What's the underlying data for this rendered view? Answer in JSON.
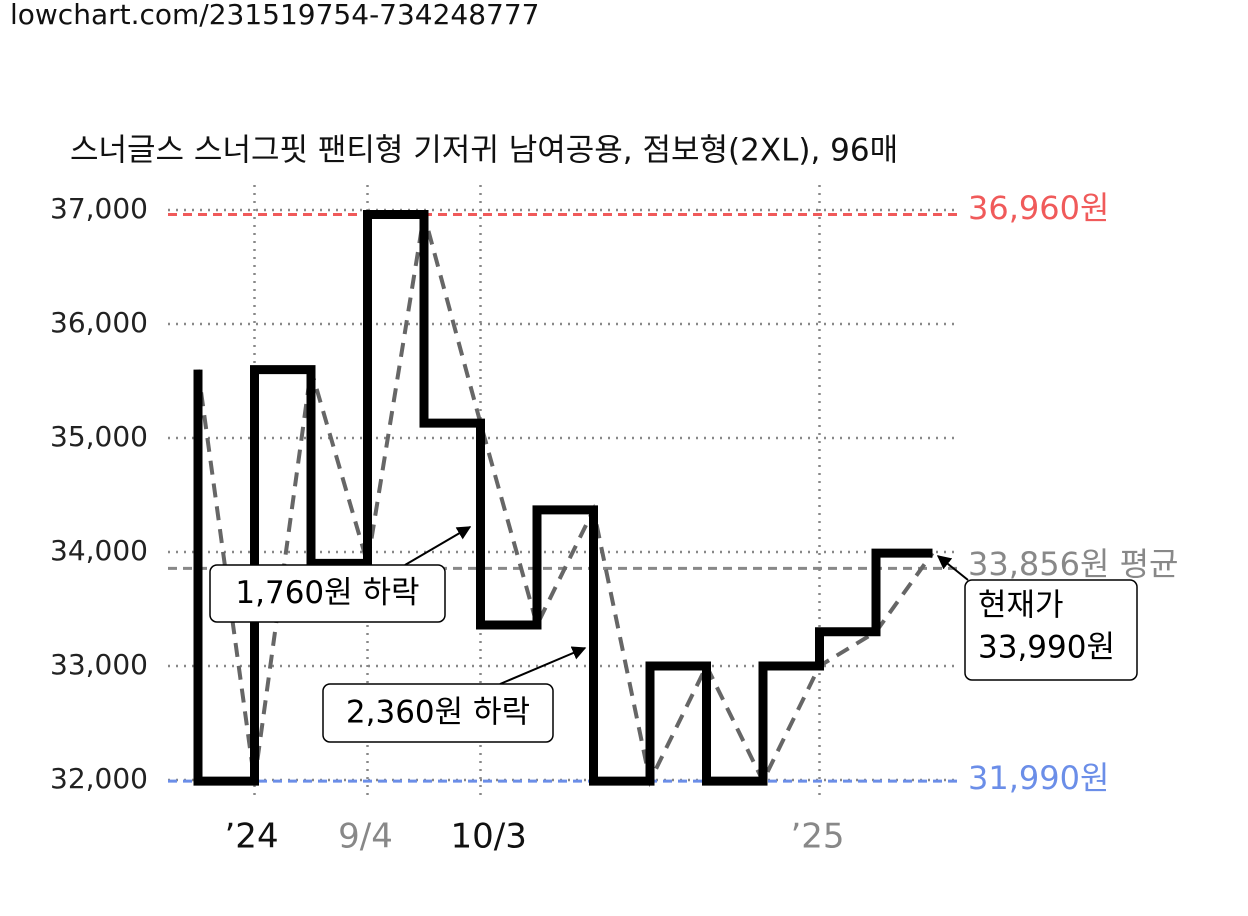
{
  "header": "lowchart.com/231519754-734248777",
  "chart_data": {
    "type": "step-line",
    "title": "스너글스 스너그핏 팬티형 기저귀 남여공용, 점보형(2XL), 96매",
    "x": [
      0,
      1,
      2,
      3,
      4,
      5,
      6,
      7,
      8,
      9,
      10,
      11,
      12,
      13
    ],
    "values": [
      35600,
      31990,
      35600,
      33900,
      36960,
      35130,
      33360,
      34370,
      31990,
      33000,
      31990,
      33000,
      33300,
      33990
    ],
    "xlim": [
      0,
      13
    ],
    "xticks": [
      {
        "value": 1,
        "label": "’24"
      },
      {
        "value": 3,
        "label": "9/4"
      },
      {
        "value": 5,
        "label": "10/3"
      },
      {
        "value": 11,
        "label": "’25"
      }
    ],
    "ylim": [
      32000,
      37000
    ],
    "yticks": [
      {
        "value": 32000,
        "label": "32,000"
      },
      {
        "value": 33000,
        "label": "33,000"
      },
      {
        "value": 34000,
        "label": "34,000"
      },
      {
        "value": 35000,
        "label": "35,000"
      },
      {
        "value": 36000,
        "label": "36,000"
      },
      {
        "value": 37000,
        "label": "37,000"
      }
    ],
    "grid": true,
    "reference_lines": [
      {
        "value": 36960,
        "label": "36,960원",
        "color": "#f05a5a"
      },
      {
        "value": 33856,
        "label": "33,856원 평균",
        "color": "#888888"
      },
      {
        "value": 31990,
        "label": "31,990원",
        "color": "#6b8ee8"
      }
    ],
    "annotations": [
      "1,760원 하락",
      "2,360원 하락"
    ],
    "current_label": [
      "현재가",
      "33,990원"
    ]
  }
}
